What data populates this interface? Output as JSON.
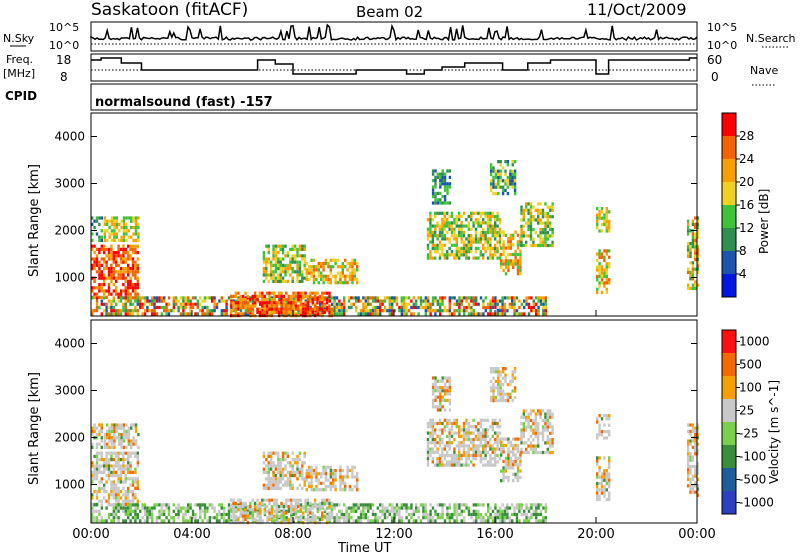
{
  "header": {
    "title": "Saskatoon (fitACF)",
    "beam": "Beam 02",
    "date": "11/Oct/2009"
  },
  "status_panels": {
    "nsky_label": "N.Sky",
    "nsearch_label": "N.Search",
    "freq_label_line1": "Freq.",
    "freq_label_line2": "[MHz]",
    "nave_label": "Nave",
    "cpid_label": "CPID",
    "cpid_text": "normalsound (fast) -157",
    "noise_ticks_left": [
      "10^5",
      "10^0"
    ],
    "noise_ticks_right": [
      "10^5",
      "10^0"
    ],
    "freq_ticks": [
      "18",
      "8"
    ],
    "nave_ticks": [
      "60",
      "0"
    ]
  },
  "colors": {
    "power": [
      "#0018e0",
      "#1c55b0",
      "#2f8f4e",
      "#3ec23a",
      "#f0d020",
      "#f7a000",
      "#f56200",
      "#ff0000"
    ],
    "velocity": [
      "#2b3fc0",
      "#1a5f9c",
      "#3a8e3a",
      "#7ad04a",
      "#c8c8c8",
      "#f3a000",
      "#f56a00",
      "#ff1010"
    ]
  },
  "chart_data": [
    {
      "type": "heatmap",
      "name": "power",
      "ylabel": "Slant Range [km]",
      "ylim": [
        180,
        4500
      ],
      "yticks": [
        "4000",
        "3000",
        "2000",
        "1000"
      ],
      "colorbar_label": "Power [dB]",
      "colorbar_ticks": [
        "28",
        "24",
        "20",
        "16",
        "12",
        "8",
        "4"
      ],
      "xlim_hours": [
        0,
        24
      ]
    },
    {
      "type": "heatmap",
      "name": "velocity",
      "ylabel": "Slant Range [km]",
      "xlabel": "Time UT",
      "ylim": [
        180,
        4500
      ],
      "yticks": [
        "4000",
        "3000",
        "2000",
        "1000"
      ],
      "xticks": [
        "00:00",
        "04:00",
        "08:00",
        "12:00",
        "16:00",
        "20:00",
        "00:00"
      ],
      "colorbar_label": "Velocity [m s^-1]",
      "colorbar_ticks": [
        "1000",
        "500",
        "100",
        "25",
        "-25",
        "-100",
        "-500",
        "-1000"
      ],
      "xlim_hours": [
        0,
        24
      ]
    }
  ],
  "echo_regions": [
    {
      "t0": 0.0,
      "t1": 1.9,
      "r0": 600,
      "r1": 1700,
      "p0": 5,
      "p1": 7
    },
    {
      "t0": 0.5,
      "t1": 1.9,
      "r0": 1800,
      "r1": 2300,
      "p0": 3,
      "p1": 5
    },
    {
      "t0": 0.0,
      "t1": 0.4,
      "r0": 1800,
      "r1": 2300,
      "p0": 1,
      "p1": 3
    },
    {
      "t0": 0.0,
      "t1": 18.0,
      "r0": 200,
      "r1": 600,
      "p0": 1,
      "p1": 7
    },
    {
      "t0": 6.8,
      "t1": 8.5,
      "r0": 900,
      "r1": 1700,
      "p0": 2,
      "p1": 5
    },
    {
      "t0": 8.5,
      "t1": 10.5,
      "r0": 900,
      "r1": 1400,
      "p0": 3,
      "p1": 6
    },
    {
      "t0": 5.5,
      "t1": 9.5,
      "r0": 200,
      "r1": 700,
      "p0": 5,
      "p1": 7
    },
    {
      "t0": 13.3,
      "t1": 16.2,
      "r0": 1400,
      "r1": 2400,
      "p0": 2,
      "p1": 5
    },
    {
      "t0": 15.8,
      "t1": 16.8,
      "r0": 2800,
      "r1": 3500,
      "p0": 1,
      "p1": 4
    },
    {
      "t0": 16.2,
      "t1": 17.0,
      "r0": 1100,
      "r1": 2000,
      "p0": 3,
      "p1": 6
    },
    {
      "t0": 17.0,
      "t1": 18.3,
      "r0": 1700,
      "r1": 2600,
      "p0": 2,
      "p1": 5
    },
    {
      "t0": 20.0,
      "t1": 20.5,
      "r0": 700,
      "r1": 1600,
      "p0": 3,
      "p1": 6
    },
    {
      "t0": 20.0,
      "t1": 20.5,
      "r0": 2000,
      "r1": 2500,
      "p0": 3,
      "p1": 5
    },
    {
      "t0": 23.6,
      "t1": 24.0,
      "r0": 800,
      "r1": 2300,
      "p0": 2,
      "p1": 6
    },
    {
      "t0": 13.5,
      "t1": 14.2,
      "r0": 2600,
      "r1": 3300,
      "p0": 1,
      "p1": 3
    }
  ]
}
